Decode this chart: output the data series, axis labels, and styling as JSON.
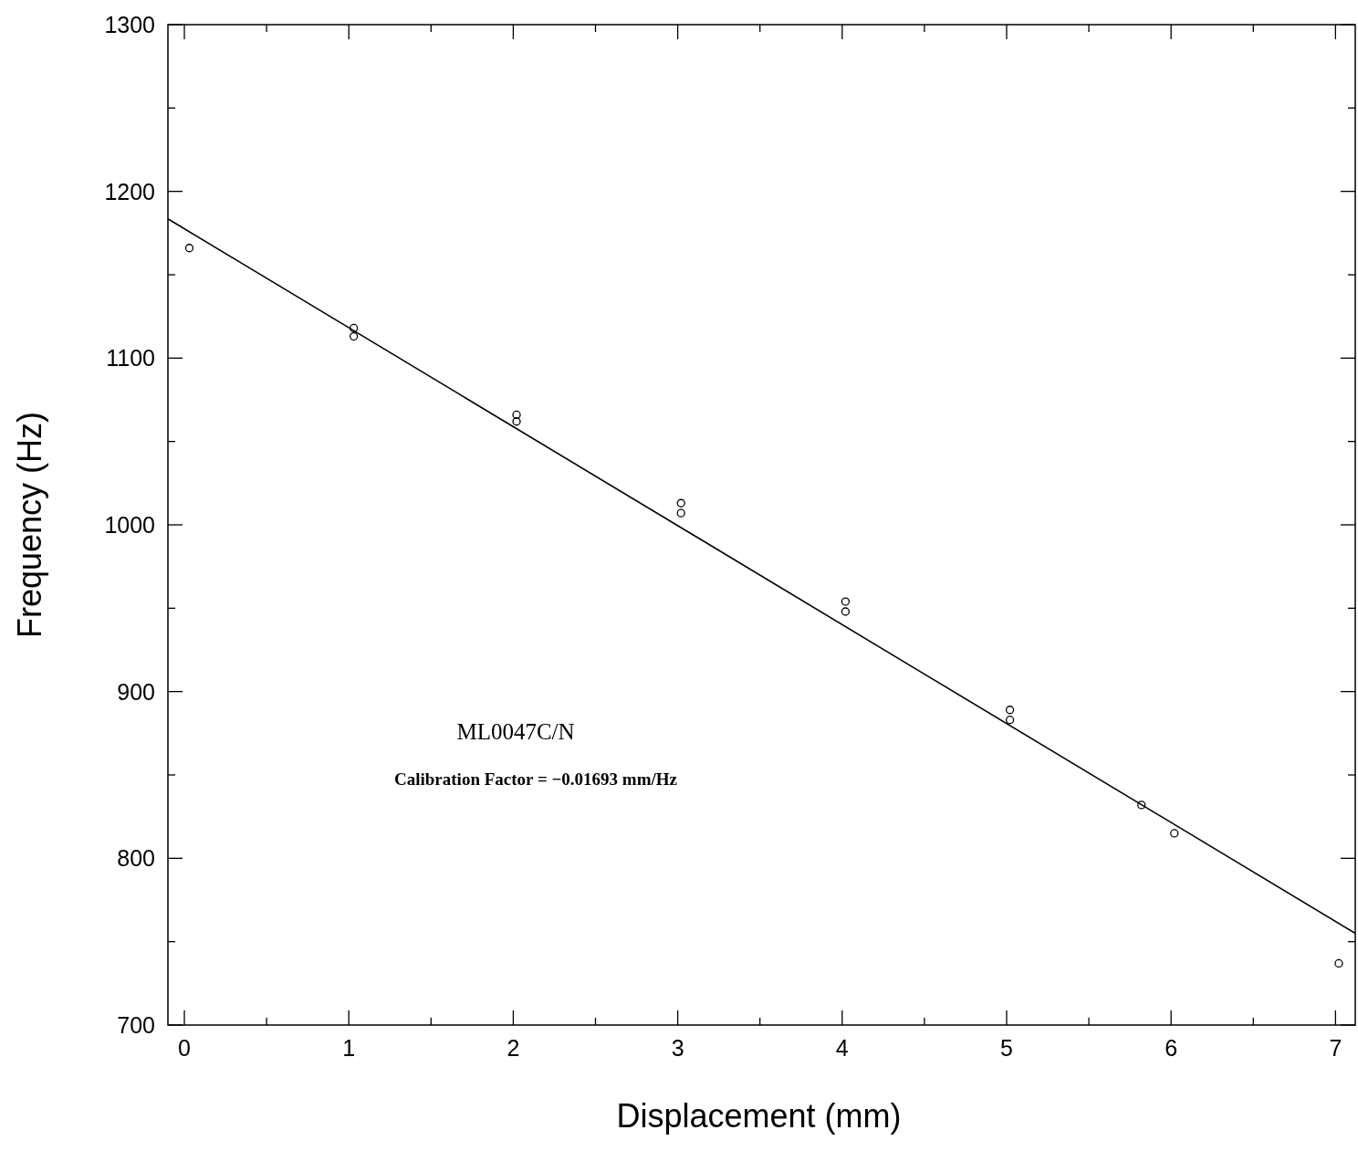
{
  "chart_data": {
    "type": "scatter",
    "xlabel": "Displacement (mm)",
    "ylabel": "Frequency (Hz)",
    "xlim": [
      -0.1,
      7.12
    ],
    "ylim": [
      700,
      1300
    ],
    "xticks": [
      0,
      {
        "value": 0.5,
        "label": null
      },
      1,
      {
        "value": 1.5,
        "label": null
      },
      2,
      {
        "value": 2.5,
        "label": null
      },
      3,
      {
        "value": 3.5,
        "label": null
      },
      4,
      {
        "value": 4.5,
        "label": null
      },
      5,
      {
        "value": 5.5,
        "label": null
      },
      6,
      {
        "value": 6.5,
        "label": null
      },
      7
    ],
    "yticks": [
      700,
      {
        "value": 750,
        "label": null
      },
      800,
      {
        "value": 850,
        "label": null
      },
      900,
      {
        "value": 950,
        "label": null
      },
      1000,
      {
        "value": 1050,
        "label": null
      },
      1100,
      {
        "value": 1150,
        "label": null
      },
      1200,
      {
        "value": 1250,
        "label": null
      },
      1300
    ],
    "grid": false,
    "marker": "circle",
    "series": [
      {
        "color": "#000000",
        "x": [
          0.03,
          1.03,
          1.03,
          2.02,
          2.02,
          3.02,
          3.02,
          4.02,
          4.02,
          5.02,
          5.02,
          5.82,
          6.02,
          7.02
        ],
        "values": [
          1166,
          1118,
          1113,
          1066,
          1062,
          1013,
          1007,
          954,
          948,
          889,
          883,
          832,
          815,
          737
        ]
      },
      {
        "type": "line",
        "color": "#000000",
        "marker": "none",
        "x": [
          -0.1,
          7.12
        ],
        "values": [
          1183.5,
          755
        ]
      }
    ],
    "annotations": [
      "ML0047C/N",
      "Calibration Factor = −0.01693 mm/Hz"
    ]
  }
}
